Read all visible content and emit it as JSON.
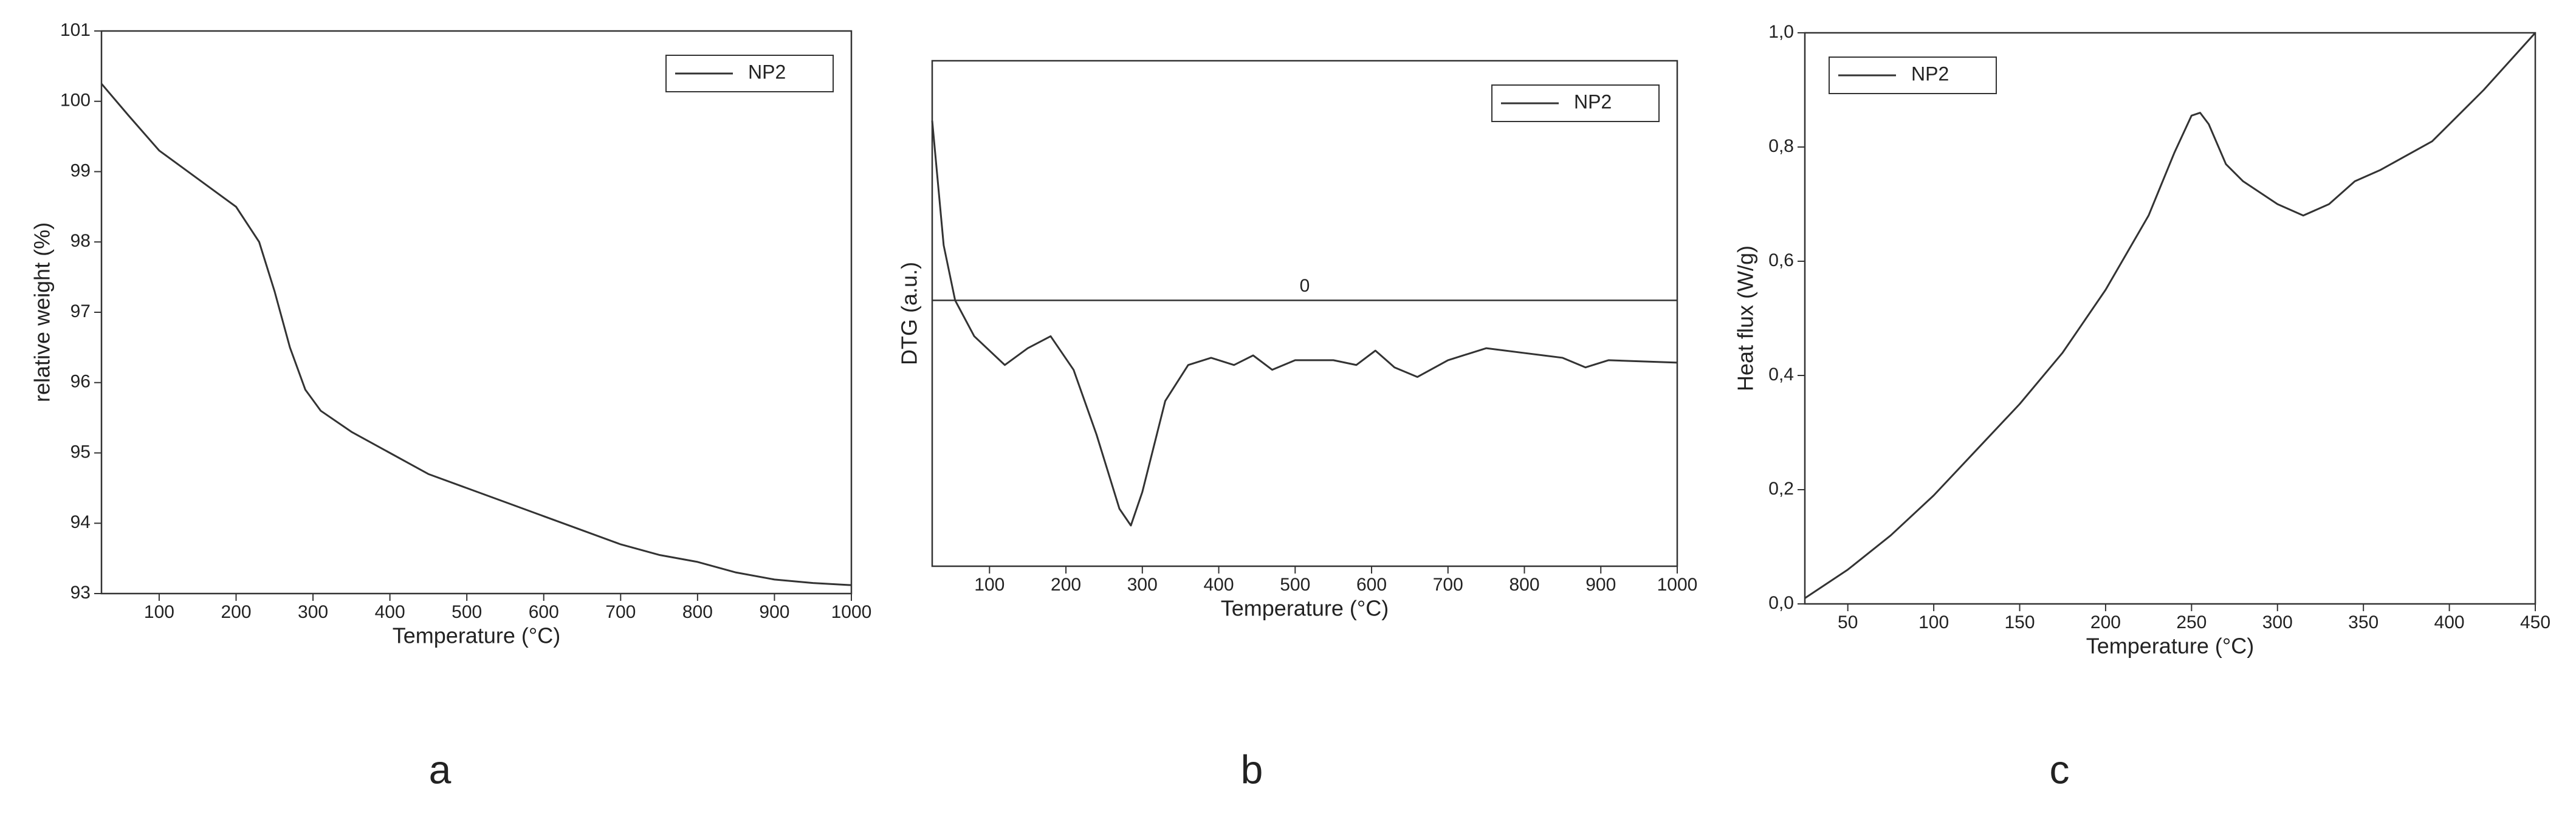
{
  "chart_data": [
    {
      "type": "line",
      "panel_label": "a",
      "xlabel": "Temperature (°C)",
      "ylabel": "relative weight (%)",
      "xlim": [
        25,
        1000
      ],
      "xticks": [
        100,
        200,
        300,
        400,
        500,
        600,
        700,
        800,
        900,
        1000
      ],
      "ylim": [
        93,
        101
      ],
      "yticks": [
        93,
        94,
        95,
        96,
        97,
        98,
        99,
        100,
        101
      ],
      "x": [
        25,
        60,
        100,
        150,
        200,
        230,
        250,
        270,
        290,
        310,
        350,
        400,
        450,
        500,
        550,
        600,
        650,
        700,
        750,
        800,
        850,
        900,
        950,
        1000
      ],
      "series": [
        {
          "name": "NP2",
          "color": "#333333",
          "values": [
            100.25,
            99.8,
            99.3,
            98.9,
            98.5,
            98.0,
            97.3,
            96.5,
            95.9,
            95.6,
            95.3,
            95.0,
            94.7,
            94.5,
            94.3,
            94.1,
            93.9,
            93.7,
            93.55,
            93.45,
            93.3,
            93.2,
            93.15,
            93.12
          ]
        }
      ],
      "legend": "upper right"
    },
    {
      "type": "line",
      "panel_label": "b",
      "xlabel": "Temperature (°C)",
      "ylabel": "DTG (a.u.)",
      "xlim": [
        25,
        1000
      ],
      "xticks": [
        100,
        200,
        300,
        400,
        500,
        600,
        700,
        800,
        900,
        1000
      ],
      "ylim": [
        -1.11,
        1
      ],
      "reference_line": 0,
      "reference_label": "0",
      "x": [
        25,
        40,
        55,
        80,
        120,
        150,
        180,
        210,
        240,
        270,
        285,
        300,
        330,
        360,
        390,
        420,
        445,
        470,
        500,
        550,
        580,
        605,
        630,
        660,
        700,
        750,
        800,
        850,
        880,
        910,
        1000
      ],
      "series": [
        {
          "name": "NP2",
          "color": "#333333",
          "values": [
            0.75,
            0.23,
            0,
            -0.15,
            -0.27,
            -0.2,
            -0.15,
            -0.29,
            -0.56,
            -0.87,
            -0.94,
            -0.8,
            -0.42,
            -0.27,
            -0.24,
            -0.27,
            -0.23,
            -0.29,
            -0.25,
            -0.25,
            -0.27,
            -0.21,
            -0.28,
            -0.32,
            -0.25,
            -0.2,
            -0.22,
            -0.24,
            -0.28,
            -0.25,
            -0.26
          ]
        }
      ],
      "legend": "upper right"
    },
    {
      "type": "line",
      "panel_label": "c",
      "xlabel": "Temperature (°C)",
      "ylabel": "Heat flux (W/g)",
      "xlim": [
        25,
        450
      ],
      "xticks": [
        50,
        100,
        150,
        200,
        250,
        300,
        350,
        400,
        450
      ],
      "ylim": [
        0,
        1
      ],
      "yticks": [
        {
          "value": 0,
          "label": "0,0"
        },
        {
          "value": 0.2,
          "label": "0,2"
        },
        {
          "value": 0.4,
          "label": "0,4"
        },
        {
          "value": 0.6,
          "label": "0,6"
        },
        {
          "value": 0.8,
          "label": "0,8"
        },
        {
          "value": 1,
          "label": "1,0"
        }
      ],
      "x": [
        25,
        50,
        75,
        100,
        125,
        150,
        175,
        200,
        225,
        240,
        250,
        255,
        260,
        270,
        280,
        300,
        315,
        330,
        345,
        360,
        375,
        390,
        400,
        420,
        450
      ],
      "series": [
        {
          "name": "NP2",
          "color": "#333333",
          "values": [
            0.01,
            0.06,
            0.12,
            0.19,
            0.27,
            0.35,
            0.44,
            0.55,
            0.68,
            0.79,
            0.855,
            0.86,
            0.84,
            0.77,
            0.74,
            0.7,
            0.68,
            0.7,
            0.74,
            0.76,
            0.785,
            0.81,
            0.84,
            0.9,
            1.0
          ]
        }
      ],
      "legend": "upper left"
    }
  ]
}
